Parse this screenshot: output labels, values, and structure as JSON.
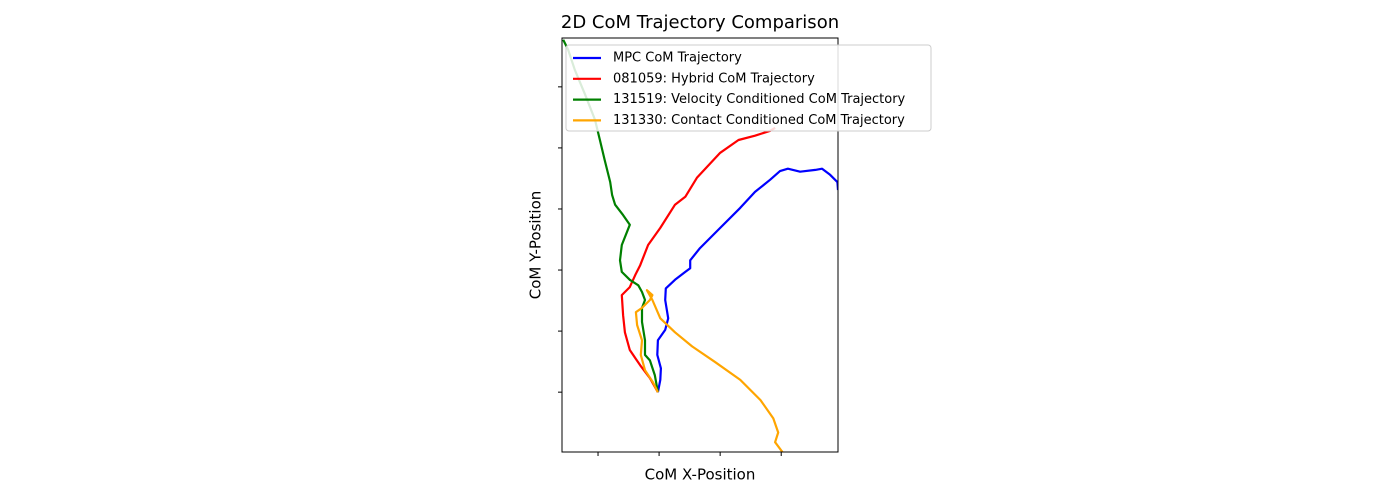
{
  "chart_data": {
    "type": "line",
    "title": "2D CoM Trajectory Comparison",
    "x_label": "CoM X-Position",
    "y_label": "CoM Y-Position",
    "xlim": [
      -0.59,
      3.93
    ],
    "ylim": [
      -0.98,
      5.8
    ],
    "xticks": [
      0,
      1,
      2,
      3
    ],
    "yticks": [
      0,
      1,
      2,
      3,
      4,
      5
    ],
    "legend": "upper left",
    "series": [
      {
        "name": "MPC CoM Trajectory",
        "color": "#0000ff",
        "x": [
          0.98,
          1.02,
          1.03,
          0.97,
          0.98,
          1.1,
          1.15,
          1.1,
          1.11,
          1.26,
          1.43,
          1.51,
          1.51,
          1.67,
          2.0,
          2.33,
          2.57,
          2.82,
          2.98,
          3.11,
          3.31,
          3.56,
          3.67,
          3.8,
          3.92,
          3.93
        ],
        "values": [
          0,
          0.2,
          0.39,
          0.61,
          0.85,
          1.02,
          1.21,
          1.51,
          1.7,
          1.84,
          1.97,
          2.03,
          2.16,
          2.36,
          2.69,
          3.02,
          3.28,
          3.48,
          3.62,
          3.66,
          3.61,
          3.64,
          3.66,
          3.56,
          3.44,
          3.31
        ]
      },
      {
        "name": "081059: Hybrid CoM Trajectory",
        "color": "#ff0000",
        "x": [
          0.98,
          0.85,
          0.69,
          0.52,
          0.44,
          0.41,
          0.39,
          0.52,
          0.61,
          0.69,
          0.82,
          1.02,
          1.26,
          1.43,
          1.62,
          2.0,
          2.3,
          2.57,
          2.82,
          2.9
        ],
        "values": [
          0,
          0.23,
          0.44,
          0.69,
          0.98,
          1.26,
          1.59,
          1.72,
          1.92,
          2.08,
          2.41,
          2.69,
          3.07,
          3.2,
          3.51,
          3.92,
          4.13,
          4.2,
          4.28,
          4.33
        ]
      },
      {
        "name": "131519: Velocity Conditioned CoM Trajectory",
        "color": "#008000",
        "x": [
          0.98,
          0.93,
          0.85,
          0.77,
          0.77,
          0.72,
          0.72,
          0.77,
          0.72,
          0.66,
          0.52,
          0.39,
          0.36,
          0.39,
          0.52,
          0.41,
          0.28,
          0.23,
          0.2,
          0.11,
          0.03,
          -0.05,
          -0.21,
          -0.38,
          -0.49,
          -0.57
        ],
        "values": [
          0,
          0.28,
          0.52,
          0.61,
          0.85,
          1.15,
          1.38,
          1.51,
          1.64,
          1.75,
          1.84,
          1.97,
          2.16,
          2.41,
          2.74,
          2.9,
          3.07,
          3.23,
          3.44,
          3.8,
          4.13,
          4.46,
          4.87,
          5.28,
          5.61,
          5.77
        ]
      },
      {
        "name": "131330: Contact Conditioned CoM Trajectory",
        "color": "#ffa500",
        "x": [
          0.98,
          0.9,
          0.77,
          0.7,
          0.72,
          0.64,
          0.62,
          0.72,
          0.85,
          0.89,
          0.8,
          0.89,
          1.02,
          1.26,
          1.54,
          1.92,
          2.33,
          2.66,
          2.87,
          2.95,
          2.9,
          3.02
        ],
        "values": [
          0,
          0.16,
          0.36,
          0.61,
          0.85,
          1.1,
          1.31,
          1.38,
          1.51,
          1.59,
          1.67,
          1.51,
          1.21,
          0.98,
          0.75,
          0.49,
          0.2,
          -0.13,
          -0.43,
          -0.66,
          -0.82,
          -0.98
        ]
      }
    ]
  }
}
